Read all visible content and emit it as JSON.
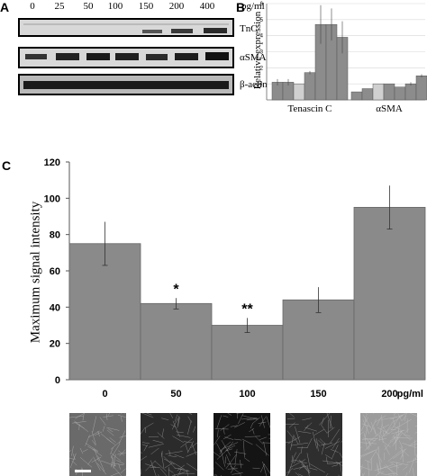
{
  "panel_a": {
    "letter": "A",
    "lanes": [
      "0",
      "25",
      "50",
      "100",
      "150",
      "200",
      "400"
    ],
    "unit": "pg/ml",
    "row_labels": [
      "TnC",
      "αSMA",
      "β-actin"
    ]
  },
  "panel_b": {
    "letter": "B",
    "ylabel": "Relative expression",
    "yticks": [
      "1",
      "2",
      "3",
      "4",
      "5",
      "6"
    ]
  },
  "panel_c": {
    "letter": "C",
    "ylabel": "Maximum signal intensity",
    "yticks": [
      "0",
      "20",
      "40",
      "60",
      "80",
      "100",
      "120"
    ],
    "unit": "pg/ml"
  },
  "chart_data": [
    {
      "type": "bar",
      "panel": "B",
      "categories": [
        "Tenascin C",
        "αSMA"
      ],
      "ylabel": "Relative expression",
      "ylim": [
        0,
        6
      ],
      "groups": [
        {
          "label": "Tenascin C",
          "values": [
            1.1,
            1.1,
            1.0,
            1.7,
            4.7,
            4.7,
            3.9
          ],
          "errors": [
            0.2,
            0.2,
            0.0,
            0.1,
            1.2,
            1.0,
            1.0
          ],
          "colors": [
            "#8c8c8c",
            "#8c8c8c",
            "#d0d0d0",
            "#8c8c8c",
            "#8c8c8c",
            "#8c8c8c",
            "#8c8c8c"
          ]
        },
        {
          "label": "αSMA",
          "values": [
            0.5,
            0.7,
            1.0,
            1.0,
            0.8,
            1.0,
            1.5
          ],
          "errors": [
            0.0,
            0.0,
            0.0,
            0.0,
            0.0,
            0.1,
            0.1
          ],
          "colors": [
            "#8c8c8c",
            "#8c8c8c",
            "#d0d0d0",
            "#8c8c8c",
            "#8c8c8c",
            "#8c8c8c",
            "#8c8c8c"
          ]
        }
      ]
    },
    {
      "type": "bar",
      "panel": "C",
      "categories": [
        "0",
        "50",
        "100",
        "150",
        "200"
      ],
      "values": [
        75,
        42,
        30,
        44,
        95
      ],
      "errors": [
        12,
        3,
        4,
        7,
        12
      ],
      "significance": [
        "",
        "*",
        "**",
        "",
        ""
      ],
      "ylabel": "Maximum signal intensity",
      "ylim": [
        0,
        120
      ],
      "unit": "pg/ml"
    }
  ],
  "colors": {
    "bar": "#8a8a8a",
    "bar_light": "#d0d0d0",
    "micrograph_dark": "#1a1a1a",
    "micrograph_light": "#9a9a9a"
  },
  "micrographs": [
    {
      "tone": "#6a6a6a"
    },
    {
      "tone": "#2b2b2b"
    },
    {
      "tone": "#141414"
    },
    {
      "tone": "#2e2e2e"
    },
    {
      "tone": "#9c9c9c"
    }
  ]
}
